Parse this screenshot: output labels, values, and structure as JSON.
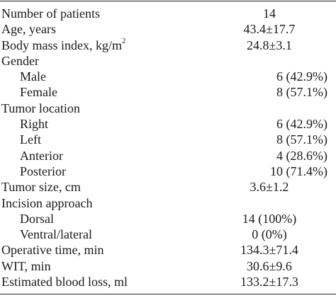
{
  "table": {
    "rows": [
      {
        "label": "Number of patients",
        "value": "14",
        "indent": false,
        "align": "center"
      },
      {
        "label": "Age, years",
        "value": "43.4±17.7",
        "indent": false,
        "align": "center"
      },
      {
        "label": "Body mass index, kg/m",
        "label_sup": "2",
        "value": "24.8±3.1",
        "indent": false,
        "align": "center"
      },
      {
        "label": "Gender",
        "value": "",
        "indent": false,
        "align": "center"
      },
      {
        "label": "Male",
        "value": "6 (42.9%)",
        "indent": true,
        "align": "right"
      },
      {
        "label": "Female",
        "value": "8 (57.1%)",
        "indent": true,
        "align": "right"
      },
      {
        "label": "Tumor location",
        "value": "",
        "indent": false,
        "align": "center"
      },
      {
        "label": "Right",
        "value": "6 (42.9%)",
        "indent": true,
        "align": "right"
      },
      {
        "label": "Left",
        "value": "8 (57.1%)",
        "indent": true,
        "align": "right"
      },
      {
        "label": "Anterior",
        "value": "4 (28.6%)",
        "indent": true,
        "align": "right"
      },
      {
        "label": "Posterior",
        "value": "10 (71.4%)",
        "indent": true,
        "align": "right"
      },
      {
        "label": "Tumor size, cm",
        "value": "3.6±1.2",
        "indent": false,
        "align": "center"
      },
      {
        "label": "Incision approach",
        "value": "",
        "indent": false,
        "align": "center"
      },
      {
        "label": "Dorsal",
        "value": "14 (100%)",
        "indent": true,
        "align": "center"
      },
      {
        "label": "Ventral/lateral",
        "value": "0 (0%)",
        "indent": true,
        "align": "center"
      },
      {
        "label": "Operative time, min",
        "value": "134.3±71.4",
        "indent": false,
        "align": "center"
      },
      {
        "label": "WIT, min",
        "value": "30.6±9.6",
        "indent": false,
        "align": "center"
      },
      {
        "label": "Estimated blood loss, ml",
        "value": "133.2±17.3",
        "indent": false,
        "align": "center"
      }
    ]
  }
}
